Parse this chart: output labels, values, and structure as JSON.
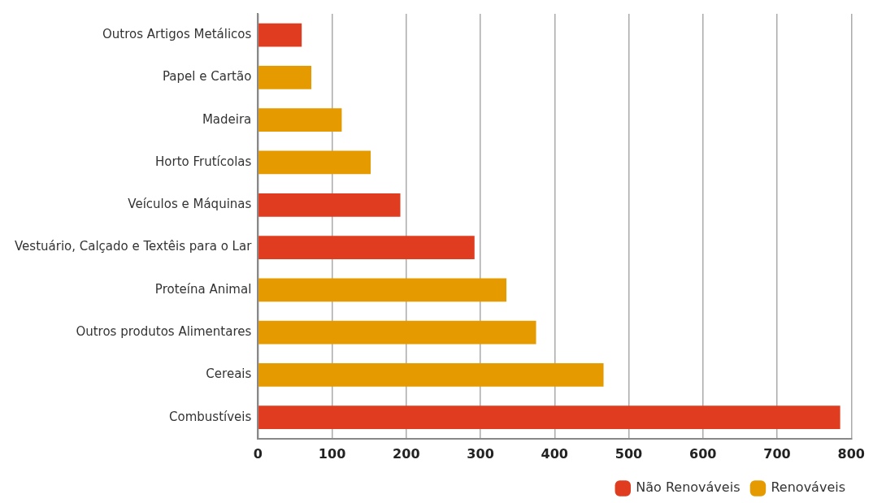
{
  "chart_data": {
    "type": "bar",
    "orientation": "horizontal",
    "stacked": true,
    "categories": [
      "Outros Artigos Metálicos",
      "Papel e Cartão",
      "Madeira",
      "Horto Frutícolas",
      "Veículos e Máquinas",
      "Vestuário, Calçado e Textêis para o Lar",
      "Proteína Animal",
      "Outros produtos Alimentares",
      "Cereais",
      "Combustíveis"
    ],
    "series": [
      {
        "name": "Não Renováveis",
        "color": "#e03c1f",
        "values": [
          59,
          null,
          null,
          null,
          192,
          292,
          null,
          null,
          null,
          785
        ]
      },
      {
        "name": "Renováveis",
        "color": "#e59b00",
        "values": [
          null,
          72,
          113,
          152,
          null,
          null,
          335,
          375,
          466,
          null
        ]
      }
    ],
    "xlim": [
      0,
      800
    ],
    "xticks": [
      0,
      100,
      200,
      300,
      400,
      500,
      600,
      700,
      800
    ],
    "grid": "x",
    "legend": "bottom right"
  }
}
